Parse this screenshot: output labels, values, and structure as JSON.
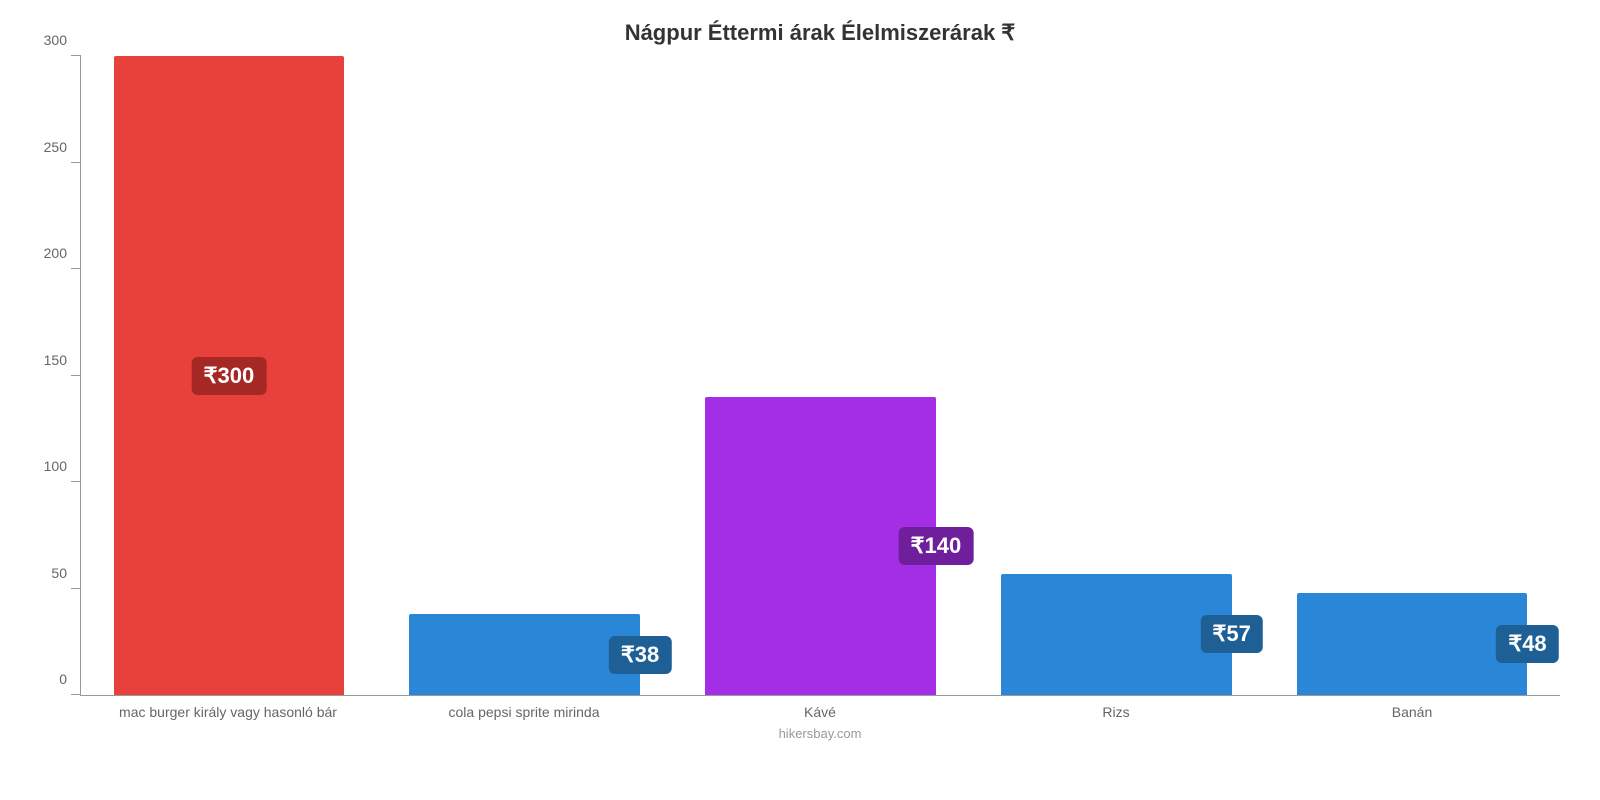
{
  "chart": {
    "type": "bar",
    "title": "Nágpur Éttermi árak Élelmiszerárak ₹",
    "title_fontsize": 22,
    "title_color": "#333333",
    "footer": "hikersbay.com",
    "footer_color": "#999999",
    "background_color": "#ffffff",
    "axis_color": "#999999",
    "ylim": [
      0,
      300
    ],
    "ytick_step": 50,
    "yticks": [
      0,
      50,
      100,
      150,
      200,
      250,
      300
    ],
    "ylabel_color": "#666666",
    "ylabel_fontsize": 14,
    "xlabel_color": "#666666",
    "xlabel_fontsize": 14,
    "value_prefix": "₹",
    "bar_width_pct": 78,
    "badge_fontsize": 22,
    "badge_text_color": "#ffffff",
    "badge_radius": 6,
    "bars": [
      {
        "label": "mac burger király vagy hasonló bár",
        "value": 300,
        "color": "#e8403a",
        "badge_bg": "#a52824",
        "badge_left_pct": 50,
        "badge_translate_x_pct": -50,
        "badge_bottom_pct": 50
      },
      {
        "label": "cola pepsi sprite mirinda",
        "value": 38,
        "color": "#2a87d8",
        "badge_bg": "#1e5f96",
        "badge_left_pct": 100,
        "badge_translate_x_pct": -50,
        "badge_bottom_pct": 50
      },
      {
        "label": "Kávé",
        "value": 140,
        "color": "#a32ee6",
        "badge_bg": "#6f1f9c",
        "badge_left_pct": 100,
        "badge_translate_x_pct": -50,
        "badge_bottom_pct": 50
      },
      {
        "label": "Rizs",
        "value": 57,
        "color": "#2a87d8",
        "badge_bg": "#1e5f96",
        "badge_left_pct": 100,
        "badge_translate_x_pct": -50,
        "badge_bottom_pct": 50
      },
      {
        "label": "Banán",
        "value": 48,
        "color": "#2a87d8",
        "badge_bg": "#1e5f96",
        "badge_left_pct": 100,
        "badge_translate_x_pct": -50,
        "badge_bottom_pct": 50
      }
    ]
  }
}
